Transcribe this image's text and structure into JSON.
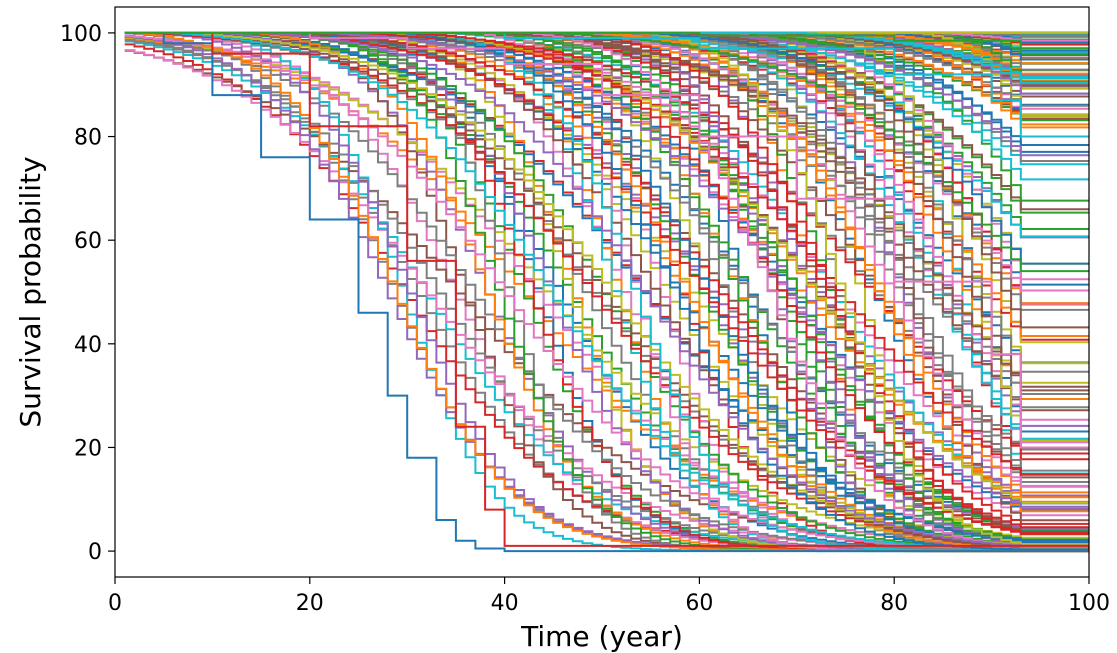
{
  "chart_data": {
    "type": "line",
    "subtype": "step",
    "title": "",
    "xlabel": "Time (year)",
    "ylabel": "Survival probability",
    "xlim": [
      0,
      100
    ],
    "ylim": [
      -5,
      105
    ],
    "xticks": [
      0,
      20,
      40,
      60,
      80,
      100
    ],
    "yticks": [
      0,
      20,
      40,
      60,
      80,
      100
    ],
    "x_tick_labels": [
      "0",
      "20",
      "40",
      "60",
      "80",
      "100"
    ],
    "y_tick_labels": [
      "0",
      "20",
      "40",
      "60",
      "80",
      "100"
    ],
    "grid": false,
    "legend": "none",
    "series_count_estimate": 300,
    "x_end": 93,
    "palette": [
      "#1f77b4",
      "#ff7f0e",
      "#2ca02c",
      "#d62728",
      "#9467bd",
      "#8c564b",
      "#e377c2",
      "#7f7f7f",
      "#bcbd22",
      "#17becf"
    ],
    "curve_family": {
      "model": "logistic-decline",
      "time_range": [
        1,
        100
      ],
      "step_interval": 1,
      "median_survival_time_range": [
        26,
        150
      ],
      "decline_scale_range": [
        3.5,
        11
      ]
    },
    "series": [
      {
        "name": "",
        "x": [
          1,
          5,
          10,
          15,
          20,
          25,
          28,
          30,
          33,
          35,
          37,
          40,
          100
        ],
        "y": [
          100,
          98,
          88,
          76,
          64,
          46,
          30,
          18,
          6,
          2,
          0.5,
          0,
          0
        ]
      },
      {
        "name": "",
        "x": [
          1,
          10,
          20,
          30,
          35,
          38,
          40,
          100
        ],
        "y": [
          100,
          96,
          82,
          56,
          24,
          8,
          1,
          0
        ]
      },
      {
        "name": "",
        "x": [
          1,
          10,
          20,
          30,
          40,
          50,
          60,
          70,
          80,
          90,
          93,
          100
        ],
        "y": [
          100,
          100,
          99,
          97,
          94,
          88,
          80,
          68,
          52,
          38,
          20,
          20
        ]
      },
      {
        "name": "",
        "x": [
          1,
          20,
          40,
          60,
          80,
          90,
          93,
          100
        ],
        "y": [
          100,
          100,
          99,
          97,
          92,
          87,
          80,
          80
        ]
      },
      {
        "name": "",
        "x": [
          1,
          40,
          60,
          80,
          93,
          100
        ],
        "y": [
          100,
          100,
          99.5,
          98.5,
          97,
          97
        ]
      }
    ]
  }
}
